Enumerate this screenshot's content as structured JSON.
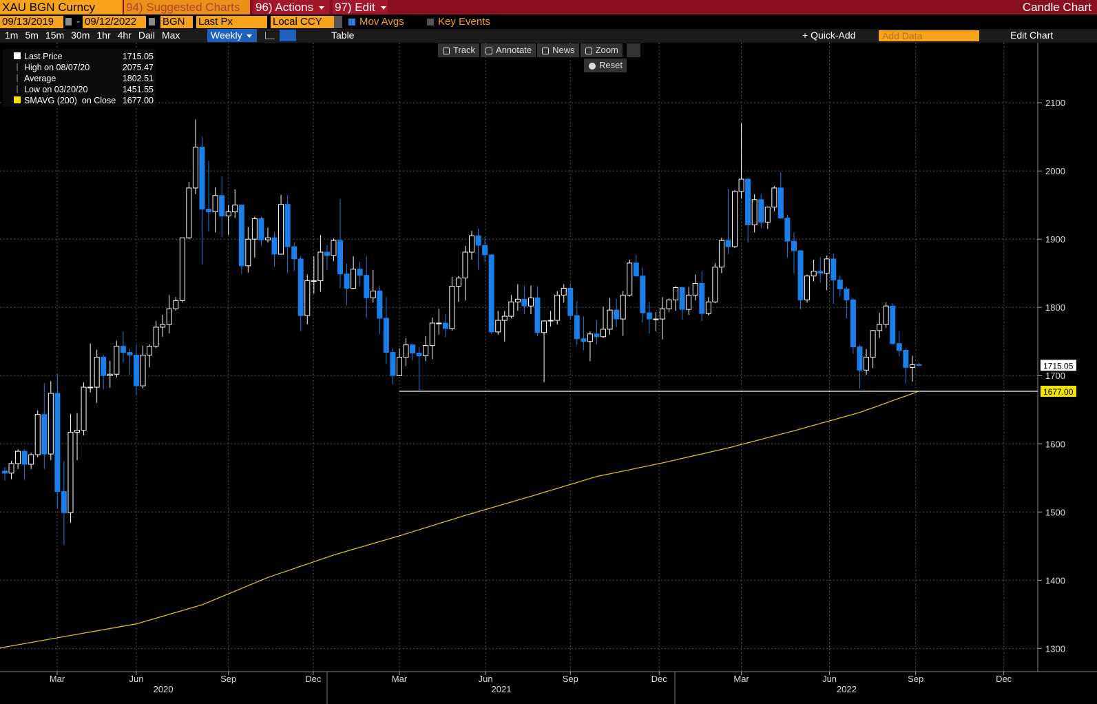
{
  "header": {
    "ticker": "XAU BGN Curncy",
    "suggested": "94) Suggested Charts",
    "actions": "96) Actions",
    "edit": "97) Edit",
    "chart_kind": "Candle Chart",
    "start_date": "09/13/2019",
    "dash": "-",
    "end_date": "09/12/2022",
    "source": "BGN",
    "field": "Last Px",
    "currency": "Local CCY",
    "mov_avgs": "Mov Avgs",
    "key_events": "Key Events",
    "periods": [
      "1m",
      "5m",
      "15m",
      "30m",
      "1hr",
      "4hr",
      "Dail",
      "Max"
    ],
    "weekly": "Weekly",
    "table": "Table",
    "quick_add": "+ Quick-Add",
    "add_data": "Add Data",
    "edit_chart": "Edit Chart",
    "tools": [
      "Track",
      "Annotate",
      "News",
      "Zoom"
    ],
    "reset": "Reset"
  },
  "chart_data": {
    "type": "candlestick",
    "up_color": "#ffffff",
    "down_color": "#1a7fe8",
    "open": [
      1560,
      1557,
      1571,
      1589,
      1570,
      1584,
      1643,
      1585,
      1674,
      1530,
      1499,
      1617,
      1620,
      1683,
      1683,
      1727,
      1700,
      1702,
      1743,
      1734,
      1730,
      1685,
      1730,
      1743,
      1771,
      1775,
      1798,
      1810,
      1902,
      1975,
      2035,
      1944,
      1940,
      1964,
      1934,
      1940,
      1950,
      1861,
      1900,
      1930,
      1899,
      1902,
      1878,
      1951,
      1889,
      1871,
      1788,
      1839,
      1839,
      1881,
      1876,
      1898,
      1849,
      1828,
      1856,
      1847,
      1814,
      1824,
      1784,
      1734,
      1700,
      1727,
      1745,
      1733,
      1729,
      1744,
      1777,
      1777,
      1769,
      1831,
      1843,
      1881,
      1905,
      1891,
      1877,
      1764,
      1781,
      1787,
      1808,
      1812,
      1802,
      1814,
      1763,
      1780,
      1781,
      1818,
      1828,
      1788,
      1754,
      1750,
      1761,
      1757,
      1768,
      1796,
      1783,
      1818,
      1865,
      1846,
      1792,
      1783,
      1783,
      1798,
      1811,
      1829,
      1797,
      1818,
      1835,
      1791,
      1808,
      1859,
      1898,
      1889,
      1970,
      1988,
      1921,
      1958,
      1925,
      1947,
      1975,
      1931,
      1897,
      1883,
      1811,
      1846,
      1853,
      1850,
      1871,
      1840,
      1827,
      1811,
      1742,
      1708,
      1727,
      1766,
      1775,
      1802,
      1747,
      1737,
      1712,
      1716
    ],
    "high": [
      1566,
      1575,
      1592,
      1592,
      1587,
      1649,
      1689,
      1692,
      1703,
      1575,
      1644,
      1645,
      1690,
      1747,
      1738,
      1730,
      1722,
      1751,
      1765,
      1739,
      1745,
      1744,
      1746,
      1780,
      1789,
      1818,
      1815,
      1902,
      1984,
      2075.47,
      2050,
      2015,
      1976,
      1992,
      1950,
      1973,
      1950,
      1918,
      1933,
      1933,
      1917,
      1910,
      1965,
      1965,
      1895,
      1875,
      1848,
      1875,
      1906,
      1891,
      1901,
      1959,
      1864,
      1875,
      1867,
      1875,
      1855,
      1831,
      1815,
      1740,
      1740,
      1755,
      1746,
      1742,
      1758,
      1785,
      1798,
      1790,
      1845,
      1846,
      1890,
      1912,
      1916,
      1903,
      1878,
      1795,
      1795,
      1818,
      1834,
      1832,
      1832,
      1831,
      1781,
      1795,
      1824,
      1834,
      1834,
      1809,
      1787,
      1765,
      1781,
      1801,
      1814,
      1813,
      1824,
      1870,
      1877,
      1858,
      1808,
      1793,
      1815,
      1813,
      1831,
      1830,
      1830,
      1848,
      1853,
      1815,
      1865,
      1902,
      1974,
      1972,
      2070,
      1990,
      1966,
      1966,
      1948,
      1978,
      1998,
      1936,
      1910,
      1884,
      1848,
      1870,
      1874,
      1876,
      1879,
      1847,
      1830,
      1814,
      1745,
      1739,
      1767,
      1792,
      1807,
      1806,
      1765,
      1740,
      1729,
      1719
    ],
    "low": [
      1546,
      1548,
      1563,
      1547,
      1563,
      1580,
      1563,
      1576,
      1505,
      1451.55,
      1484,
      1576,
      1612,
      1675,
      1660,
      1680,
      1682,
      1697,
      1719,
      1701,
      1671,
      1681,
      1712,
      1740,
      1757,
      1762,
      1795,
      1807,
      1900,
      1966,
      1863,
      1911,
      1910,
      1903,
      1906,
      1931,
      1849,
      1851,
      1873,
      1890,
      1895,
      1860,
      1877,
      1850,
      1853,
      1765,
      1775,
      1820,
      1823,
      1855,
      1868,
      1828,
      1803,
      1827,
      1831,
      1785,
      1807,
      1761,
      1717,
      1687,
      1699,
      1714,
      1722,
      1678,
      1721,
      1724,
      1760,
      1756,
      1766,
      1808,
      1810,
      1870,
      1856,
      1866,
      1761,
      1760,
      1750,
      1784,
      1795,
      1790,
      1790,
      1758,
      1690,
      1772,
      1775,
      1807,
      1782,
      1745,
      1737,
      1721,
      1746,
      1755,
      1760,
      1771,
      1758,
      1816,
      1845,
      1778,
      1762,
      1765,
      1753,
      1793,
      1795,
      1782,
      1789,
      1810,
      1780,
      1788,
      1806,
      1850,
      1878,
      1887,
      1960,
      1895,
      1910,
      1916,
      1915,
      1941,
      1930,
      1873,
      1850,
      1797,
      1807,
      1838,
      1836,
      1825,
      1805,
      1816,
      1784,
      1732,
      1681,
      1701,
      1711,
      1755,
      1770,
      1745,
      1728,
      1688,
      1691,
      1714
    ],
    "close": [
      1557,
      1571,
      1589,
      1570,
      1584,
      1643,
      1585,
      1674,
      1530,
      1499,
      1617,
      1620,
      1683,
      1683,
      1727,
      1700,
      1702,
      1743,
      1734,
      1730,
      1685,
      1730,
      1743,
      1771,
      1775,
      1798,
      1810,
      1902,
      1975,
      2035,
      1944,
      1940,
      1964,
      1934,
      1940,
      1950,
      1861,
      1900,
      1930,
      1899,
      1902,
      1878,
      1951,
      1889,
      1871,
      1788,
      1839,
      1839,
      1881,
      1876,
      1898,
      1849,
      1828,
      1856,
      1847,
      1814,
      1824,
      1784,
      1734,
      1700,
      1727,
      1745,
      1733,
      1729,
      1744,
      1777,
      1777,
      1769,
      1831,
      1843,
      1881,
      1905,
      1891,
      1877,
      1764,
      1781,
      1787,
      1808,
      1812,
      1802,
      1814,
      1763,
      1780,
      1781,
      1818,
      1828,
      1788,
      1754,
      1750,
      1761,
      1757,
      1768,
      1796,
      1783,
      1818,
      1865,
      1846,
      1792,
      1783,
      1783,
      1798,
      1811,
      1829,
      1797,
      1818,
      1835,
      1791,
      1808,
      1859,
      1898,
      1889,
      1970,
      1988,
      1921,
      1958,
      1925,
      1947,
      1975,
      1931,
      1897,
      1883,
      1811,
      1846,
      1853,
      1850,
      1871,
      1840,
      1827,
      1811,
      1742,
      1708,
      1727,
      1766,
      1775,
      1802,
      1747,
      1737,
      1712,
      1716,
      1715.05
    ],
    "sma": {
      "color": "#d8c21a",
      "x": [
        -0.73,
        0,
        10,
        20,
        30,
        40,
        50,
        60,
        70,
        80,
        90,
        100,
        110,
        120,
        130,
        139
      ],
      "values": [
        1301,
        1302,
        1319,
        1336,
        1364,
        1404,
        1437,
        1465,
        1495,
        1523,
        1552,
        1572,
        1594,
        1619,
        1646,
        1677
      ]
    },
    "support_line": {
      "value": 1677,
      "color": "#ffffff"
    },
    "xlim": [
      -0.73,
      157.07
    ],
    "ylim": [
      1266,
      2188
    ],
    "yticks": [
      1300,
      1400,
      1500,
      1600,
      1700,
      1800,
      1900,
      2000,
      2100
    ],
    "xticks": [
      {
        "value": 7.96,
        "label": "Mar"
      },
      {
        "value": 20.0,
        "label": "Jun"
      },
      {
        "value": 34.0,
        "label": "Sep"
      },
      {
        "value": 46.9,
        "label": "Dec"
      },
      {
        "value": 60.0,
        "label": "Mar"
      },
      {
        "value": 73.1,
        "label": "Jun"
      },
      {
        "value": 86.0,
        "label": "Sep"
      },
      {
        "value": 99.5,
        "label": "Dec"
      },
      {
        "value": 112.0,
        "label": "Mar"
      },
      {
        "value": 125.4,
        "label": "Jun"
      },
      {
        "value": 138.5,
        "label": "Sep"
      },
      {
        "value": 151.9,
        "label": "Dec"
      }
    ],
    "year_ticks": [
      {
        "value": 24.1,
        "label": "2020"
      },
      {
        "value": 75.5,
        "label": "2021"
      },
      {
        "value": 128.0,
        "label": "2022"
      }
    ],
    "grid": true,
    "legend": [
      {
        "label": "Last Price",
        "value": 1715.05,
        "color": "#ffffff"
      },
      {
        "label": "High on 08/07/20",
        "value": 2075.47
      },
      {
        "label": "Average",
        "value": 1802.51
      },
      {
        "label": "Low on 03/20/20",
        "value": 1451.55
      },
      {
        "label": "SMAVG (200)  on Close",
        "value": 1677,
        "value_label": "1677.00",
        "color": "#f2e600"
      }
    ]
  }
}
